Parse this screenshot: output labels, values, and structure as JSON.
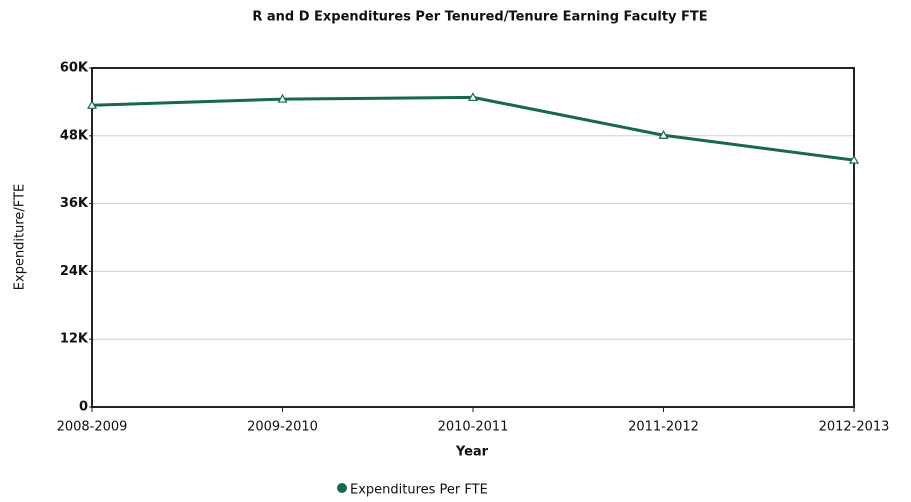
{
  "chart_data": {
    "type": "line",
    "title": "R and D Expenditures Per Tenured/Tenure Earning Faculty FTE",
    "x_label": "Year",
    "y_label": "Expenditure/FTE",
    "categories": [
      "2008-2009",
      "2009-2010",
      "2010-2011",
      "2011-2012",
      "2012-2013"
    ],
    "series": [
      {
        "name": "Expenditures Per FTE",
        "color": "#17694a",
        "values": [
          53400,
          54500,
          54800,
          48100,
          43700
        ]
      }
    ],
    "ylim": [
      0,
      60000
    ],
    "yticks": [
      0,
      {
        "value": 12000,
        "label": "12K"
      },
      {
        "value": 24000,
        "label": "24K"
      },
      {
        "value": 36000,
        "label": "36K"
      },
      {
        "value": 48000,
        "label": "48K"
      },
      {
        "value": 60000,
        "label": "60K"
      }
    ],
    "grid": true,
    "legend": "bottom"
  }
}
